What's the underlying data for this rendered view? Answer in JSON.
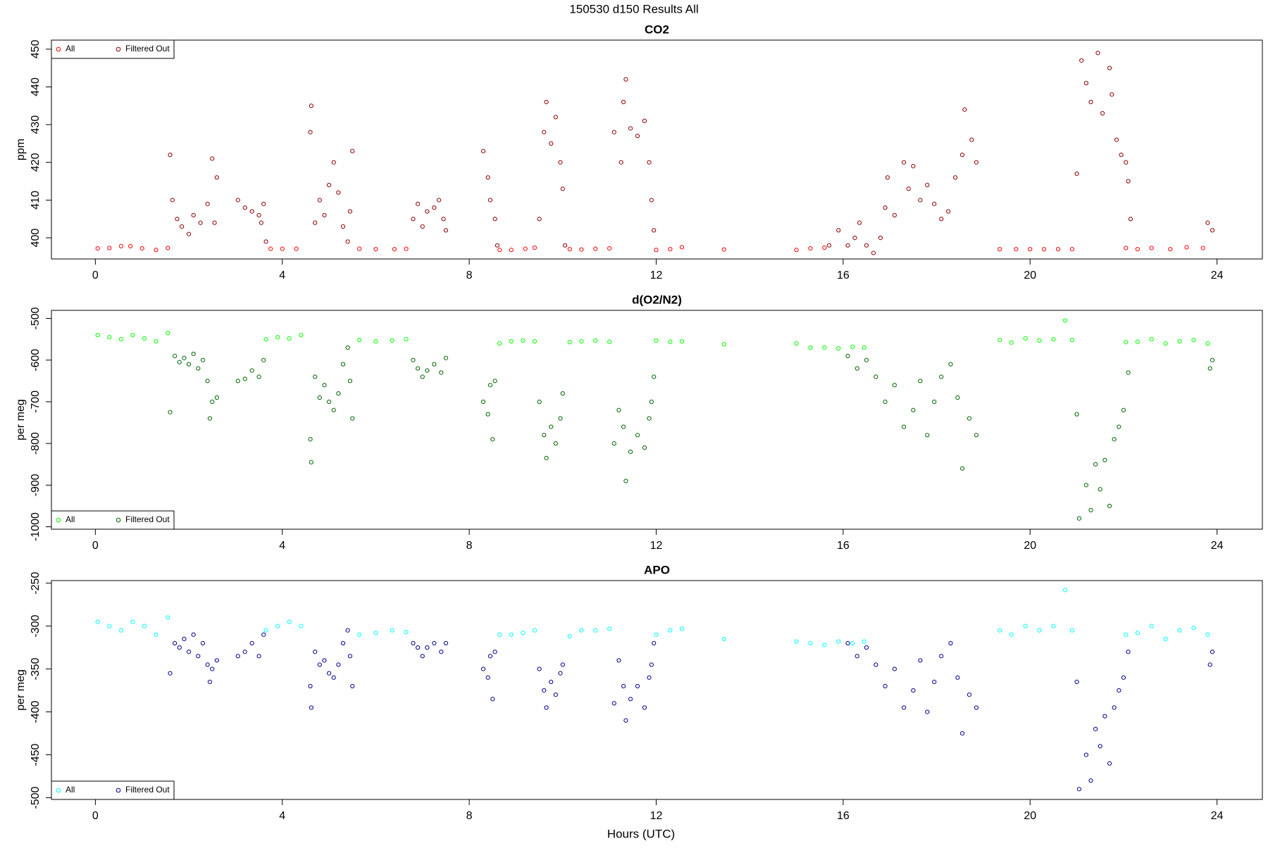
{
  "title": "150530   d150   Results All",
  "xlabel": "Hours (UTC)",
  "chart_data": [
    {
      "type": "scatter",
      "title": "CO2",
      "y_label": "ppm",
      "legend": "top-left",
      "xlim": [
        -0.94,
        24.97
      ],
      "xticks": [
        0,
        4,
        8,
        12,
        16,
        20,
        24
      ],
      "ylim": [
        394.4,
        452.4
      ],
      "yticks": [
        400,
        410,
        420,
        430,
        440,
        450
      ],
      "series": [
        {
          "name": "All",
          "color": "#ff0000",
          "x": [
            0.05,
            0.3,
            0.55,
            0.75,
            1.0,
            1.3,
            1.55,
            3.75,
            4.0,
            4.3,
            5.65,
            6.0,
            6.4,
            6.65,
            8.65,
            8.9,
            9.2,
            9.4,
            10.15,
            10.4,
            10.7,
            11.0,
            12.0,
            12.3,
            12.55,
            13.45,
            15.0,
            15.3,
            15.6,
            19.35,
            19.7,
            20.0,
            20.3,
            20.6,
            20.9,
            22.05,
            22.3,
            22.6,
            23.0,
            23.35,
            23.7
          ],
          "values": [
            397.2,
            397.3,
            397.8,
            397.8,
            397.2,
            396.8,
            397.3,
            397.1,
            397.1,
            397.1,
            397.1,
            397.0,
            397.0,
            397.1,
            396.8,
            396.8,
            397.1,
            397.4,
            397.0,
            396.9,
            397.1,
            397.2,
            396.8,
            397.0,
            397.5,
            396.9,
            396.8,
            397.2,
            397.4,
            397.0,
            397.0,
            397.0,
            397.0,
            397.0,
            397.0,
            397.3,
            397.0,
            397.3,
            397.0,
            397.5,
            397.3
          ]
        },
        {
          "name": "Filtered Out",
          "color": "#8b0000",
          "x": [
            1.6,
            1.65,
            1.75,
            1.85,
            2.0,
            2.1,
            2.25,
            2.4,
            2.5,
            2.55,
            2.6,
            3.05,
            3.2,
            3.35,
            3.5,
            3.55,
            3.6,
            3.65,
            4.6,
            4.62,
            4.7,
            4.8,
            4.9,
            5.0,
            5.1,
            5.2,
            5.3,
            5.4,
            5.45,
            5.5,
            6.8,
            6.9,
            7.0,
            7.1,
            7.25,
            7.35,
            7.45,
            7.5,
            8.3,
            8.4,
            8.45,
            8.55,
            8.6,
            9.5,
            9.6,
            9.65,
            9.75,
            9.85,
            9.95,
            10.0,
            10.05,
            11.1,
            11.25,
            11.3,
            11.35,
            11.45,
            11.6,
            11.75,
            11.85,
            11.9,
            11.95,
            15.7,
            15.9,
            16.1,
            16.25,
            16.35,
            16.5,
            16.65,
            16.8,
            16.9,
            16.95,
            17.1,
            17.3,
            17.4,
            17.5,
            17.65,
            17.8,
            17.95,
            18.1,
            18.25,
            18.4,
            18.55,
            18.6,
            18.75,
            18.85,
            21.0,
            21.1,
            21.2,
            21.3,
            21.45,
            21.55,
            21.7,
            21.75,
            21.85,
            21.95,
            22.05,
            22.1,
            22.15,
            23.8,
            23.9
          ],
          "values": [
            422,
            410,
            405,
            403,
            401,
            406,
            404,
            409,
            421,
            404,
            416,
            410,
            408,
            407,
            406,
            404,
            409,
            399,
            428,
            435,
            404,
            410,
            406,
            414,
            420,
            412,
            403,
            399,
            407,
            423,
            405,
            409,
            403,
            407,
            408,
            410,
            405,
            402,
            423,
            416,
            410,
            405,
            398,
            405,
            428,
            436,
            425,
            432,
            420,
            413,
            398,
            428,
            420,
            436,
            442,
            429,
            427,
            431,
            420,
            410,
            402,
            398,
            402,
            398,
            400,
            404,
            398,
            396,
            400,
            408,
            416,
            406,
            420,
            413,
            419,
            410,
            414,
            409,
            405,
            407,
            416,
            422,
            434,
            426,
            420,
            417,
            447,
            441,
            436,
            449,
            433,
            445,
            438,
            426,
            422,
            420,
            415,
            405,
            404,
            402
          ]
        }
      ]
    },
    {
      "type": "scatter",
      "title": "d(O2/N2)",
      "y_label": "per meg",
      "legend": "bottom-left",
      "xlim": [
        -0.94,
        24.97
      ],
      "xticks": [
        0,
        4,
        8,
        12,
        16,
        20,
        24
      ],
      "ylim": [
        -1005.8,
        -480.6
      ],
      "yticks": [
        -500,
        -600,
        -700,
        -800,
        -900,
        -1000
      ],
      "series": [
        {
          "name": "All",
          "color": "#00ff00",
          "x": [
            0.05,
            0.3,
            0.55,
            0.8,
            1.05,
            1.3,
            1.55,
            3.65,
            3.9,
            4.15,
            4.4,
            5.65,
            6.0,
            6.35,
            6.65,
            8.65,
            8.9,
            9.15,
            9.4,
            10.15,
            10.4,
            10.7,
            11.0,
            12.0,
            12.3,
            12.55,
            13.45,
            15.0,
            15.3,
            15.6,
            15.9,
            16.2,
            16.45,
            19.35,
            19.6,
            19.9,
            20.2,
            20.5,
            20.75,
            20.9,
            22.05,
            22.3,
            22.6,
            22.9,
            23.2,
            23.5,
            23.8
          ],
          "values": [
            -540,
            -545,
            -550,
            -540,
            -548,
            -555,
            -535,
            -550,
            -545,
            -548,
            -540,
            -552,
            -555,
            -553,
            -550,
            -560,
            -555,
            -553,
            -555,
            -557,
            -555,
            -553,
            -556,
            -553,
            -556,
            -555,
            -562,
            -560,
            -570,
            -570,
            -572,
            -568,
            -570,
            -552,
            -558,
            -548,
            -553,
            -550,
            -505,
            -552,
            -557,
            -556,
            -550,
            -560,
            -555,
            -552,
            -560
          ]
        },
        {
          "name": "Filtered Out",
          "color": "#006400",
          "x": [
            1.6,
            1.7,
            1.8,
            1.9,
            2.0,
            2.1,
            2.2,
            2.3,
            2.4,
            2.45,
            2.5,
            2.6,
            3.05,
            3.2,
            3.35,
            3.5,
            3.6,
            4.6,
            4.62,
            4.7,
            4.8,
            4.9,
            5.0,
            5.1,
            5.2,
            5.3,
            5.4,
            5.45,
            5.5,
            6.8,
            6.9,
            7.0,
            7.1,
            7.25,
            7.4,
            7.5,
            8.3,
            8.4,
            8.45,
            8.5,
            8.55,
            9.5,
            9.6,
            9.65,
            9.75,
            9.85,
            9.95,
            10.0,
            11.1,
            11.2,
            11.3,
            11.35,
            11.45,
            11.6,
            11.75,
            11.85,
            11.9,
            11.95,
            16.1,
            16.3,
            16.5,
            16.7,
            16.9,
            17.1,
            17.3,
            17.5,
            17.65,
            17.8,
            17.95,
            18.1,
            18.3,
            18.45,
            18.55,
            18.7,
            18.85,
            21.0,
            21.05,
            21.2,
            21.3,
            21.4,
            21.5,
            21.6,
            21.7,
            21.8,
            21.9,
            22.0,
            22.1,
            23.85,
            23.9
          ],
          "values": [
            -725,
            -590,
            -605,
            -595,
            -610,
            -585,
            -620,
            -600,
            -650,
            -740,
            -700,
            -690,
            -650,
            -645,
            -625,
            -640,
            -600,
            -790,
            -845,
            -640,
            -690,
            -660,
            -700,
            -720,
            -680,
            -610,
            -570,
            -650,
            -740,
            -600,
            -620,
            -640,
            -625,
            -610,
            -630,
            -595,
            -700,
            -730,
            -660,
            -790,
            -650,
            -700,
            -780,
            -835,
            -760,
            -800,
            -740,
            -680,
            -800,
            -720,
            -760,
            -890,
            -820,
            -780,
            -810,
            -740,
            -700,
            -640,
            -590,
            -620,
            -600,
            -640,
            -700,
            -660,
            -760,
            -720,
            -650,
            -780,
            -700,
            -640,
            -610,
            -690,
            -860,
            -740,
            -780,
            -730,
            -980,
            -900,
            -960,
            -850,
            -910,
            -840,
            -950,
            -790,
            -760,
            -720,
            -630,
            -620,
            -600
          ]
        }
      ]
    },
    {
      "type": "scatter",
      "title": "APO",
      "y_label": "per meg",
      "legend": "bottom-left",
      "xlim": [
        -0.94,
        24.97
      ],
      "xticks": [
        0,
        4,
        8,
        12,
        16,
        20,
        24
      ],
      "ylim": [
        -502,
        -247
      ],
      "yticks": [
        -250,
        -300,
        -350,
        -400,
        -450,
        -500
      ],
      "series": [
        {
          "name": "All",
          "color": "#00ffff",
          "x": [
            0.05,
            0.3,
            0.55,
            0.8,
            1.05,
            1.3,
            1.55,
            3.65,
            3.9,
            4.15,
            4.4,
            5.65,
            6.0,
            6.35,
            6.65,
            8.65,
            8.9,
            9.15,
            9.4,
            10.15,
            10.4,
            10.7,
            11.0,
            12.0,
            12.3,
            12.55,
            13.45,
            15.0,
            15.3,
            15.6,
            15.9,
            16.2,
            16.45,
            19.35,
            19.6,
            19.9,
            20.2,
            20.5,
            20.75,
            20.9,
            22.05,
            22.3,
            22.6,
            22.9,
            23.2,
            23.5,
            23.8
          ],
          "values": [
            -295,
            -300,
            -305,
            -295,
            -300,
            -310,
            -290,
            -305,
            -300,
            -295,
            -300,
            -310,
            -308,
            -305,
            -307,
            -310,
            -310,
            -308,
            -305,
            -312,
            -305,
            -305,
            -303,
            -310,
            -305,
            -303,
            -315,
            -318,
            -320,
            -322,
            -318,
            -320,
            -318,
            -305,
            -310,
            -300,
            -305,
            -300,
            -258,
            -305,
            -310,
            -308,
            -300,
            -315,
            -305,
            -302,
            -310
          ]
        },
        {
          "name": "Filtered Out",
          "color": "#00008b",
          "x": [
            1.6,
            1.7,
            1.8,
            1.9,
            2.0,
            2.1,
            2.2,
            2.3,
            2.4,
            2.45,
            2.5,
            2.6,
            3.05,
            3.2,
            3.35,
            3.5,
            3.6,
            4.6,
            4.62,
            4.7,
            4.8,
            4.9,
            5.0,
            5.1,
            5.2,
            5.3,
            5.4,
            5.45,
            5.5,
            6.8,
            6.9,
            7.0,
            7.1,
            7.25,
            7.4,
            7.5,
            8.3,
            8.4,
            8.45,
            8.5,
            8.55,
            9.5,
            9.6,
            9.65,
            9.75,
            9.85,
            9.95,
            10.0,
            11.1,
            11.2,
            11.3,
            11.35,
            11.45,
            11.6,
            11.75,
            11.85,
            11.9,
            11.95,
            16.1,
            16.3,
            16.5,
            16.7,
            16.9,
            17.1,
            17.3,
            17.5,
            17.65,
            17.8,
            17.95,
            18.1,
            18.3,
            18.45,
            18.55,
            18.7,
            18.85,
            21.0,
            21.05,
            21.2,
            21.3,
            21.4,
            21.5,
            21.6,
            21.7,
            21.8,
            21.9,
            22.0,
            22.1,
            23.85,
            23.9
          ],
          "values": [
            -355,
            -320,
            -325,
            -315,
            -330,
            -310,
            -335,
            -320,
            -345,
            -365,
            -350,
            -340,
            -335,
            -330,
            -320,
            -335,
            -310,
            -370,
            -395,
            -330,
            -345,
            -340,
            -355,
            -360,
            -345,
            -320,
            -305,
            -335,
            -370,
            -320,
            -325,
            -335,
            -325,
            -320,
            -330,
            -320,
            -350,
            -360,
            -335,
            -385,
            -330,
            -350,
            -375,
            -395,
            -365,
            -380,
            -355,
            -345,
            -390,
            -340,
            -370,
            -410,
            -385,
            -370,
            -395,
            -360,
            -345,
            -320,
            -320,
            -335,
            -325,
            -345,
            -370,
            -350,
            -395,
            -375,
            -340,
            -400,
            -365,
            -335,
            -320,
            -360,
            -425,
            -380,
            -395,
            -365,
            -490,
            -450,
            -480,
            -420,
            -440,
            -405,
            -460,
            -395,
            -375,
            -360,
            -330,
            -345,
            -330
          ]
        }
      ]
    }
  ]
}
